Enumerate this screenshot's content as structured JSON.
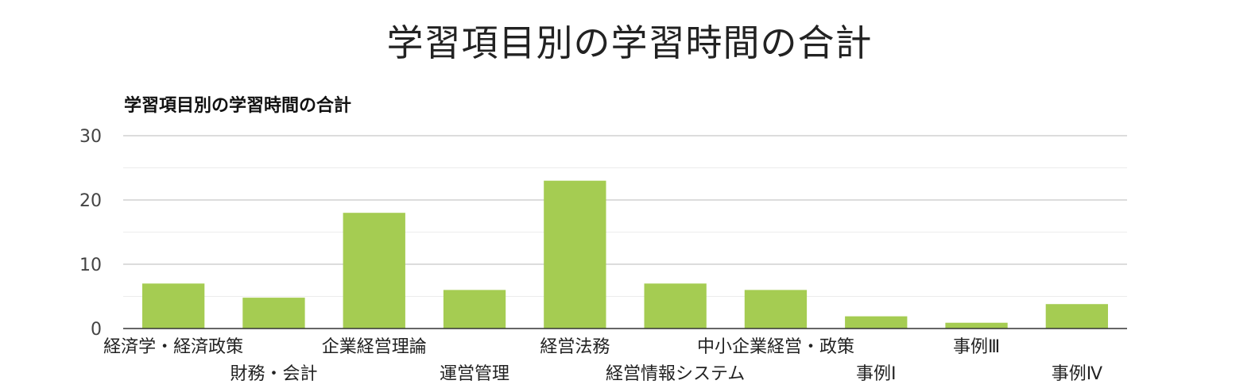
{
  "page": {
    "title": "学習項目別の学習時間の合計"
  },
  "chart_data": {
    "type": "bar",
    "title": "学習項目別の学習時間の合計",
    "xlabel": "",
    "ylabel": "",
    "ylim": [
      0,
      30
    ],
    "yticks": [
      0,
      10,
      20,
      30
    ],
    "grid": true,
    "legend": "none",
    "bar_color": "#a5cc52",
    "categories": [
      "経済学・経済政策",
      "財務・会計",
      "企業経営理論",
      "運営管理",
      "経営法務",
      "経営情報システム",
      "中小企業経営・政策",
      "事例Ⅰ",
      "事例Ⅲ",
      "事例Ⅳ"
    ],
    "values": [
      7,
      4.8,
      18,
      6,
      23,
      7,
      6,
      1.9,
      0.9,
      3.8
    ]
  }
}
